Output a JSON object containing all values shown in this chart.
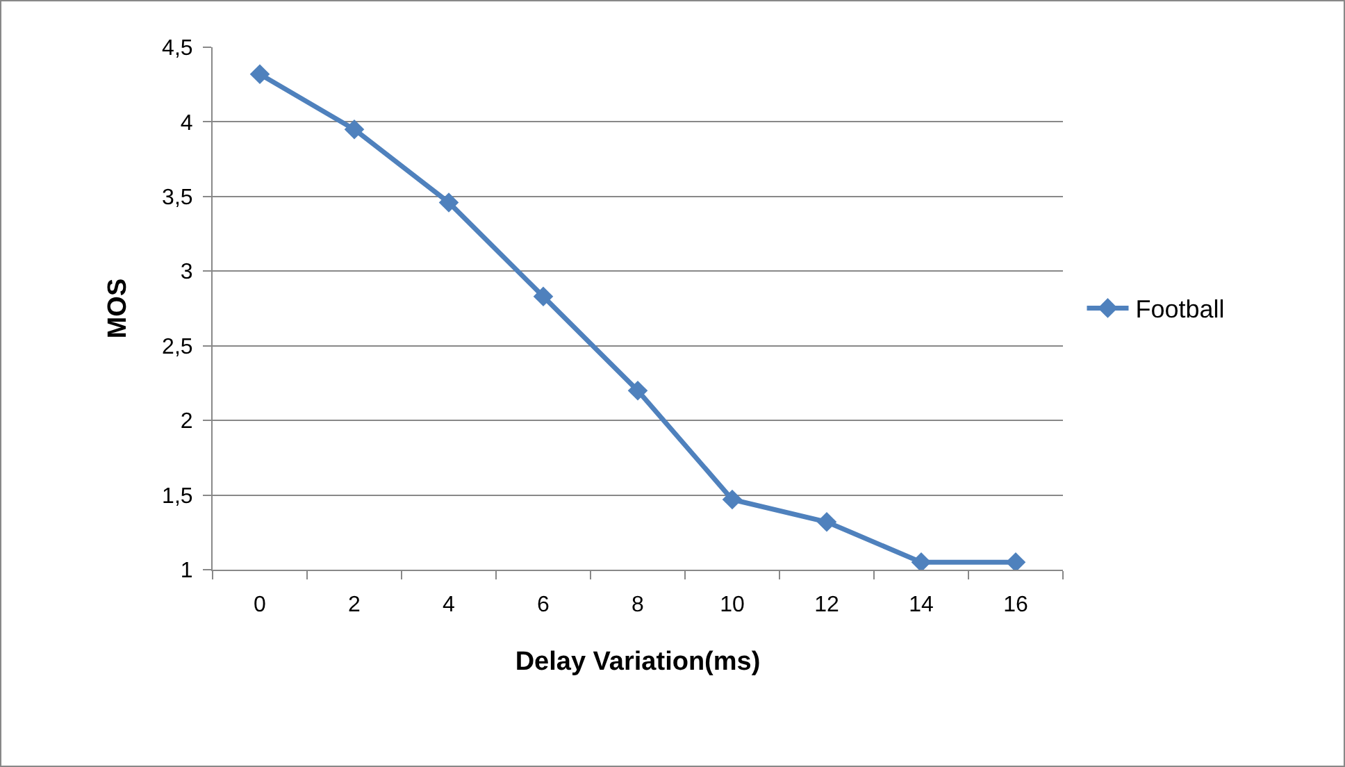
{
  "chart_data": {
    "type": "line",
    "xlabel": "Delay Variation(ms)",
    "ylabel": "MOS",
    "categories": [
      "0",
      "2",
      "4",
      "6",
      "8",
      "10",
      "12",
      "14",
      "16"
    ],
    "series": [
      {
        "name": "Football",
        "color": "#4f81bd",
        "values": [
          4.32,
          3.95,
          3.46,
          2.83,
          2.2,
          1.47,
          1.32,
          1.05,
          1.05
        ]
      }
    ],
    "ylim": [
      1,
      4.5
    ],
    "yticks": [
      1,
      {
        "value": 1.5,
        "label": "1,5"
      },
      2,
      {
        "value": 2.5,
        "label": "2,5"
      },
      3,
      {
        "value": 3.5,
        "label": "3,5"
      },
      4,
      {
        "value": 4.5,
        "label": "4,5"
      }
    ],
    "grid": "y",
    "legend": "right",
    "marker": "diamond",
    "line_style": "solid"
  }
}
